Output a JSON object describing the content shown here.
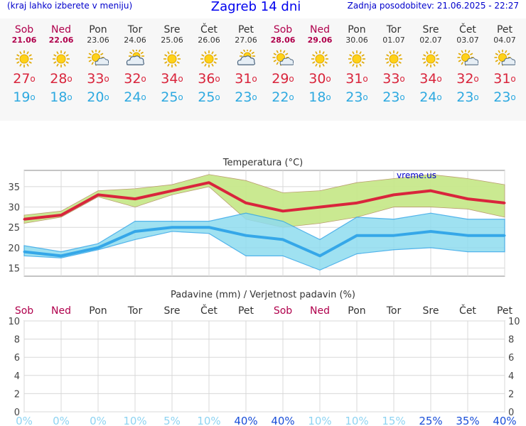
{
  "header": {
    "menu_hint": "(kraj lahko izberete v meniju)",
    "title": "Zagreb 14 dni",
    "updated": "Zadnja posodobitev: 21.06.2025 - 22:27"
  },
  "days": [
    {
      "name": "Sob",
      "date": "21.06",
      "weekend": true,
      "icon": "sun-icon",
      "tmax": "27",
      "tmin": "19"
    },
    {
      "name": "Ned",
      "date": "22.06",
      "weekend": true,
      "icon": "sun-icon",
      "tmax": "28",
      "tmin": "18"
    },
    {
      "name": "Pon",
      "date": "23.06",
      "weekend": false,
      "icon": "sun-cloud-icon",
      "tmax": "33",
      "tmin": "20"
    },
    {
      "name": "Tor",
      "date": "24.06",
      "weekend": false,
      "icon": "cloud-sun-icon",
      "tmax": "32",
      "tmin": "24"
    },
    {
      "name": "Sre",
      "date": "25.06",
      "weekend": false,
      "icon": "sun-icon",
      "tmax": "34",
      "tmin": "25"
    },
    {
      "name": "Čet",
      "date": "26.06",
      "weekend": false,
      "icon": "sun-icon",
      "tmax": "36",
      "tmin": "25"
    },
    {
      "name": "Pet",
      "date": "27.06",
      "weekend": false,
      "icon": "cloud-sun-icon",
      "tmax": "31",
      "tmin": "23"
    },
    {
      "name": "Sob",
      "date": "28.06",
      "weekend": true,
      "icon": "sun-cloud-icon",
      "tmax": "29",
      "tmin": "22"
    },
    {
      "name": "Ned",
      "date": "29.06",
      "weekend": true,
      "icon": "sun-icon",
      "tmax": "30",
      "tmin": "18"
    },
    {
      "name": "Pon",
      "date": "30.06",
      "weekend": false,
      "icon": "sun-icon",
      "tmax": "31",
      "tmin": "23"
    },
    {
      "name": "Tor",
      "date": "01.07",
      "weekend": false,
      "icon": "sun-icon",
      "tmax": "33",
      "tmin": "23"
    },
    {
      "name": "Sre",
      "date": "02.07",
      "weekend": false,
      "icon": "sun-icon",
      "tmax": "34",
      "tmin": "24"
    },
    {
      "name": "Čet",
      "date": "03.07",
      "weekend": false,
      "icon": "sun-cloud-icon",
      "tmax": "32",
      "tmin": "23"
    },
    {
      "name": "Pet",
      "date": "04.07",
      "weekend": false,
      "icon": "sun-cloud-icon",
      "tmax": "31",
      "tmin": "23"
    }
  ],
  "colors": {
    "max_line": "#d9253c",
    "min_line": "#35a7e8",
    "max_band": "#c8e88c",
    "min_band": "#8fdcef",
    "weekend": "#b0004c",
    "prob_high": "#1a4fd8",
    "prob_low": "#8fd4f2"
  },
  "chart_data": [
    {
      "type": "line",
      "title": "Temperatura (°C)",
      "watermark": "vreme.us",
      "categories": [
        "Sob",
        "Ned",
        "Pon",
        "Tor",
        "Sre",
        "Čet",
        "Pet",
        "Sob",
        "Ned",
        "Pon",
        "Tor",
        "Sre",
        "Čet",
        "Pet"
      ],
      "ylim": [
        13,
        39
      ],
      "yticks": [
        15,
        20,
        25,
        30,
        35
      ],
      "series": [
        {
          "role": "max",
          "values": [
            27,
            28,
            33,
            32,
            34,
            36,
            31,
            29,
            30,
            31,
            33,
            34,
            32,
            31
          ]
        },
        {
          "role": "max_upper",
          "values": [
            28,
            29,
            34,
            34.5,
            35.5,
            38,
            36.5,
            33.5,
            34,
            36,
            37,
            38,
            37,
            35.5
          ]
        },
        {
          "role": "max_lower",
          "values": [
            26,
            27.5,
            32.5,
            30,
            33,
            35,
            27,
            25,
            26,
            27.5,
            30,
            30,
            29.5,
            27.5
          ]
        },
        {
          "role": "min",
          "values": [
            19,
            18,
            20,
            24,
            25,
            25,
            23,
            22,
            18,
            23,
            23,
            24,
            23,
            23
          ]
        },
        {
          "role": "min_upper",
          "values": [
            20.5,
            19,
            21,
            26.5,
            26.5,
            26.5,
            28.5,
            26.5,
            22,
            27.5,
            27,
            28.5,
            27,
            27
          ]
        },
        {
          "role": "min_lower",
          "values": [
            18,
            17.5,
            19.5,
            22,
            24,
            23.5,
            18,
            18,
            14.5,
            18.5,
            19.5,
            20,
            19,
            19
          ]
        }
      ]
    },
    {
      "type": "bar",
      "title": "Padavine (mm) / Verjetnost padavin (%)",
      "categories": [
        "Sob",
        "Ned",
        "Pon",
        "Tor",
        "Sre",
        "Čet",
        "Pet",
        "Sob",
        "Ned",
        "Pon",
        "Tor",
        "Sre",
        "Čet",
        "Pet"
      ],
      "ylim": [
        0,
        10
      ],
      "yticks": [
        0,
        2,
        4,
        6,
        8,
        10
      ],
      "precipitation_mm": [
        0,
        0,
        0,
        0,
        0,
        0,
        0,
        0,
        0,
        0,
        0,
        0,
        0,
        0
      ],
      "probability_labels": [
        "0%",
        "0%",
        "0%",
        "10%",
        "5%",
        "10%",
        "40%",
        "40%",
        "10%",
        "10%",
        "15%",
        "25%",
        "35%",
        "40%"
      ]
    }
  ]
}
